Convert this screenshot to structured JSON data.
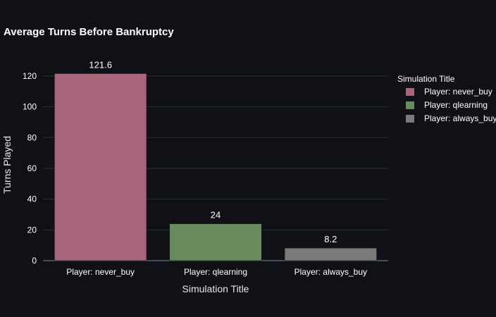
{
  "chart_data": {
    "type": "bar",
    "title": "Average Turns Before Bankruptcy",
    "xlabel": "Simulation Title",
    "ylabel": "Turns Played",
    "categories": [
      "Player: never_buy",
      "Player: qlearning",
      "Player: always_buy"
    ],
    "values": [
      121.6,
      24,
      8.2
    ],
    "value_labels": [
      "121.6",
      "24",
      "8.2"
    ],
    "colors": [
      "#a76679",
      "#688b5b",
      "#7a7a7a"
    ],
    "ylim": [
      0,
      125
    ],
    "yticks": [
      0,
      20,
      40,
      60,
      80,
      100,
      120
    ],
    "grid": true,
    "legend": {
      "title": "Simulation Title",
      "placement": "right",
      "items": [
        "Player: never_buy",
        "Player: qlearning",
        "Player: always_buy"
      ]
    }
  }
}
